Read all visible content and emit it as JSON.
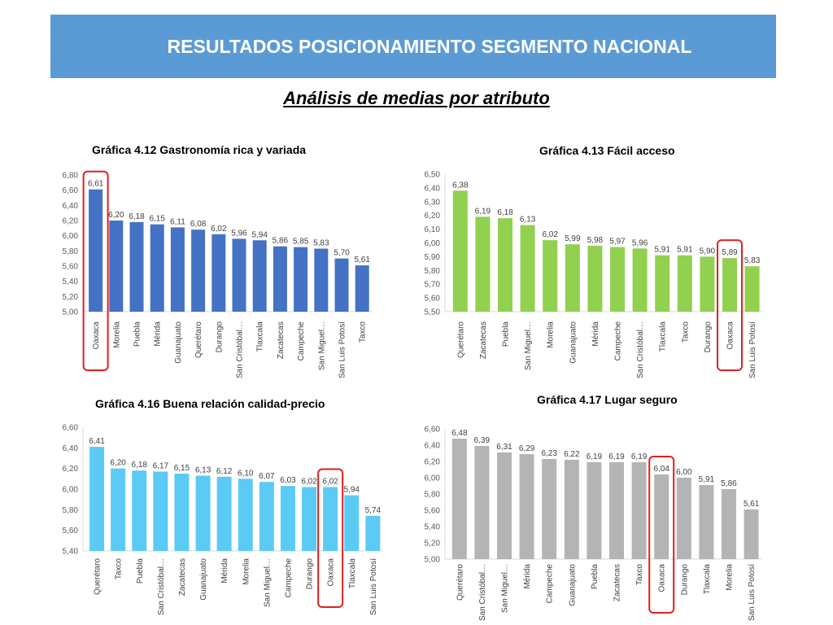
{
  "header": {
    "title": "RESULTADOS POSICIONAMIENTO SEGMENTO NACIONAL",
    "subtitle": "Análisis de medias por atributo"
  },
  "chart_data": [
    {
      "type": "bar",
      "title": "Gráfica 4.12 Gastronomía rica y variada",
      "categories": [
        "Oaxaca",
        "Morelia",
        "Puebla",
        "Mérida",
        "Guanajuato",
        "Querétaro",
        "Durango",
        "San Cristóbal…",
        "Tlaxcala",
        "Zacatecas",
        "Campeche",
        "San Miguel…",
        "San Luis Potosí",
        "Taxco"
      ],
      "values": [
        6.61,
        6.2,
        6.18,
        6.15,
        6.11,
        6.08,
        6.02,
        5.96,
        5.94,
        5.86,
        5.85,
        5.83,
        5.7,
        5.61
      ],
      "labels": [
        "6,61",
        "6,20",
        "6,18",
        "6,15",
        "6,11",
        "6,08",
        "6,02",
        "5,96",
        "5,94",
        "5,86",
        "5,85",
        "5,83",
        "5,70",
        "5,61"
      ],
      "yticks": [
        "5,00",
        "5,20",
        "5,40",
        "5,60",
        "5,80",
        "6,00",
        "6,20",
        "6,40",
        "6,60",
        "6,80"
      ],
      "ylim": [
        5.0,
        6.8
      ],
      "color": "#4472c4",
      "highlight_index": 0,
      "highlight_color": "#e02020",
      "grid": false
    },
    {
      "type": "bar",
      "title": "Gráfica 4.13 Fácil acceso",
      "categories": [
        "Querétaro",
        "Zacatecas",
        "Puebla",
        "San Miguel…",
        "Morelia",
        "Guanajuato",
        "Mérida",
        "Campeche",
        "San Cristóbal…",
        "Tlaxcala",
        "Taxco",
        "Durango",
        "Oaxaca",
        "San Luis Potosí"
      ],
      "values": [
        6.38,
        6.19,
        6.18,
        6.13,
        6.02,
        5.99,
        5.98,
        5.97,
        5.96,
        5.91,
        5.91,
        5.9,
        5.89,
        5.83
      ],
      "labels": [
        "6,38",
        "6,19",
        "6,18",
        "6,13",
        "6,02",
        "5,99",
        "5,98",
        "5,97",
        "5,96",
        "5,91",
        "5,91",
        "5,90",
        "5,89",
        "5,83"
      ],
      "yticks": [
        "5,50",
        "5,60",
        "5,70",
        "5,80",
        "5,90",
        "6,00",
        "6,10",
        "6,20",
        "6,30",
        "6,40",
        "6,50"
      ],
      "ylim": [
        5.5,
        6.5
      ],
      "color": "#92d050",
      "highlight_index": 12,
      "highlight_color": "#e02020",
      "grid": false
    },
    {
      "type": "bar",
      "title": "Gráfica 4.16 Buena relación calidad-precio",
      "categories": [
        "Querétaro",
        "Taxco",
        "Puebla",
        "San Cristóbal…",
        "Zacatecas",
        "Guanajuato",
        "Mérida",
        "Morelia",
        "San Miguel…",
        "Campeche",
        "Durango",
        "Oaxaca",
        "Tlaxcala",
        "San Luis Potosí"
      ],
      "values": [
        6.41,
        6.2,
        6.18,
        6.17,
        6.15,
        6.13,
        6.12,
        6.1,
        6.07,
        6.03,
        6.02,
        6.02,
        5.94,
        5.74
      ],
      "labels": [
        "6,41",
        "6,20",
        "6,18",
        "6,17",
        "6,15",
        "6,13",
        "6,12",
        "6,10",
        "6,07",
        "6,03",
        "6,02",
        "6,02",
        "5,94",
        "5,74"
      ],
      "yticks": [
        "5,40",
        "5,60",
        "5,80",
        "6,00",
        "6,20",
        "6,40",
        "6,60"
      ],
      "ylim": [
        5.4,
        6.6
      ],
      "color": "#5bcbf5",
      "highlight_index": 11,
      "highlight_color": "#e02020",
      "grid": false
    },
    {
      "type": "bar",
      "title": "Gráfica 4.17 Lugar seguro",
      "categories": [
        "Querétaro",
        "San Cristóbal…",
        "San Miguel…",
        "Mérida",
        "Campeche",
        "Guanajuato",
        "Puebla",
        "Zacatecas",
        "Taxco",
        "Oaxaca",
        "Durango",
        "Tlaxcala",
        "Morelia",
        "San Luis Potosí"
      ],
      "values": [
        6.48,
        6.39,
        6.31,
        6.29,
        6.23,
        6.22,
        6.19,
        6.19,
        6.19,
        6.04,
        6.0,
        5.91,
        5.86,
        5.61
      ],
      "labels": [
        "6,48",
        "6,39",
        "6,31",
        "6,29",
        "6,23",
        "6,22",
        "6,19",
        "6,19",
        "6,19",
        "6,04",
        "6,00",
        "5,91",
        "5,86",
        "5,61"
      ],
      "yticks": [
        "5,00",
        "5,20",
        "5,40",
        "5,60",
        "5,80",
        "6,00",
        "6,20",
        "6,40",
        "6,60"
      ],
      "ylim": [
        5.0,
        6.6
      ],
      "color": "#b4b4b4",
      "highlight_index": 9,
      "highlight_color": "#e02020",
      "grid": false
    }
  ]
}
